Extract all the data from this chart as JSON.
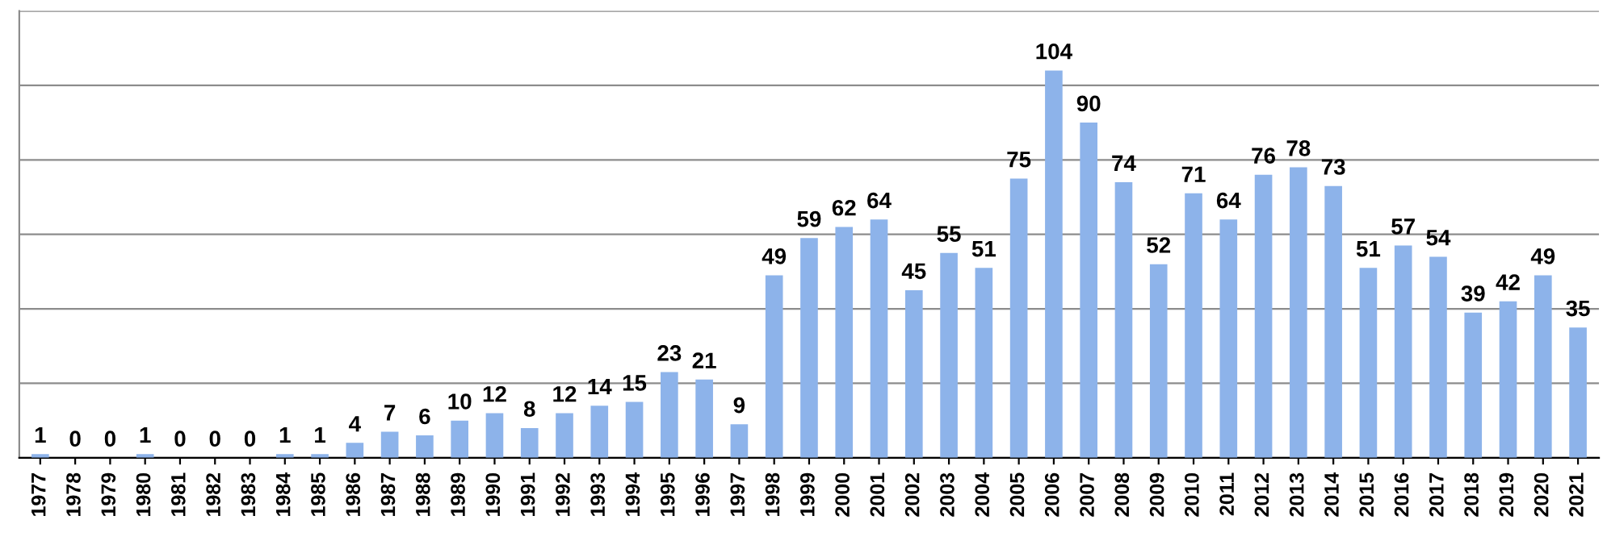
{
  "chart_data": {
    "type": "bar",
    "categories": [
      "1977",
      "1978",
      "1979",
      "1980",
      "1981",
      "1982",
      "1983",
      "1984",
      "1985",
      "1986",
      "1987",
      "1988",
      "1989",
      "1990",
      "1991",
      "1992",
      "1993",
      "1994",
      "1995",
      "1996",
      "1997",
      "1998",
      "1999",
      "2000",
      "2001",
      "2002",
      "2003",
      "2004",
      "2005",
      "2006",
      "2007",
      "2008",
      "2009",
      "2010",
      "2011",
      "2012",
      "2013",
      "2014",
      "2015",
      "2016",
      "2017",
      "2018",
      "2019",
      "2020",
      "2021"
    ],
    "values": [
      1,
      0,
      0,
      1,
      0,
      0,
      0,
      1,
      1,
      4,
      7,
      6,
      10,
      12,
      8,
      12,
      14,
      15,
      23,
      21,
      9,
      49,
      59,
      62,
      64,
      45,
      55,
      51,
      75,
      104,
      90,
      74,
      52,
      71,
      64,
      76,
      78,
      73,
      51,
      57,
      54,
      39,
      42,
      49,
      35
    ],
    "color": "#8db3ea",
    "ylim": [
      0,
      120
    ],
    "yticks": [
      {
        "value": 0,
        "label": null
      },
      {
        "value": 20,
        "label": null
      },
      {
        "value": 40,
        "label": null
      },
      {
        "value": 60,
        "label": null
      },
      {
        "value": 80,
        "label": null
      },
      {
        "value": 100,
        "label": null
      },
      {
        "value": 120,
        "label": null
      }
    ],
    "grid": "y",
    "tick_labels": "x",
    "data_labels": true
  }
}
